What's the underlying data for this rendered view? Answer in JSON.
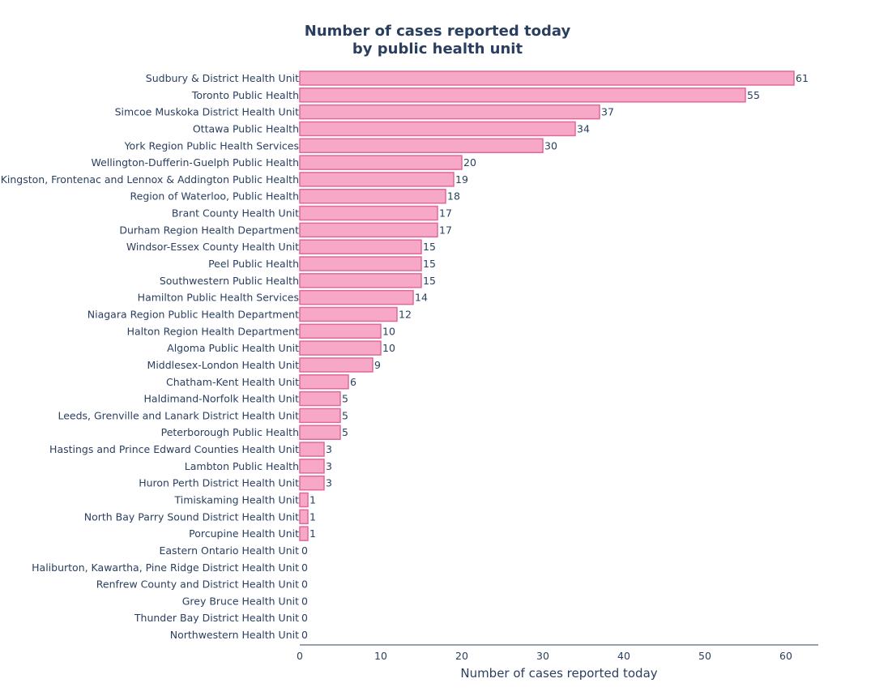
{
  "colors": {
    "bar_fill": "#f7a8c6",
    "bar_stroke": "#e0689a",
    "text": "#2a3f5f",
    "axis_line": "#2a3f5f"
  },
  "chart_data": {
    "type": "bar",
    "orientation": "horizontal",
    "title": "Number of cases reported today",
    "subtitle": "by public health unit",
    "xlabel": "Number of cases reported today",
    "ylabel": "",
    "xlim": [
      0,
      64
    ],
    "x_ticks": [
      0,
      10,
      20,
      30,
      40,
      50,
      60
    ],
    "grid": false,
    "categories": [
      "Sudbury & District Health Unit",
      "Toronto Public Health",
      "Simcoe Muskoka District Health Unit",
      "Ottawa Public Health",
      "York Region Public Health Services",
      "Wellington-Dufferin-Guelph Public Health",
      "Kingston, Frontenac and Lennox & Addington Public Health",
      "Region of Waterloo, Public Health",
      "Brant County Health Unit",
      "Durham Region Health Department",
      "Windsor-Essex County Health Unit",
      "Peel Public Health",
      "Southwestern Public Health",
      "Hamilton Public Health Services",
      "Niagara Region Public Health Department",
      "Halton Region Health Department",
      "Algoma Public Health Unit",
      "Middlesex-London Health Unit",
      "Chatham-Kent Health Unit",
      "Haldimand-Norfolk Health Unit",
      "Leeds, Grenville and Lanark District Health Unit",
      "Peterborough Public Health",
      "Hastings and Prince Edward Counties Health Unit",
      "Lambton Public Health",
      "Huron Perth District Health Unit",
      "Timiskaming Health Unit",
      "North Bay Parry Sound District Health Unit",
      "Porcupine Health Unit",
      "Eastern Ontario Health Unit",
      "Haliburton, Kawartha, Pine Ridge District Health Unit",
      "Renfrew County and District Health Unit",
      "Grey Bruce Health Unit",
      "Thunder Bay District Health Unit",
      "Northwestern Health Unit"
    ],
    "values": [
      61,
      55,
      37,
      34,
      30,
      20,
      19,
      18,
      17,
      17,
      15,
      15,
      15,
      14,
      12,
      10,
      10,
      9,
      6,
      5,
      5,
      5,
      3,
      3,
      3,
      1,
      1,
      1,
      0,
      0,
      0,
      0,
      0,
      0
    ]
  }
}
